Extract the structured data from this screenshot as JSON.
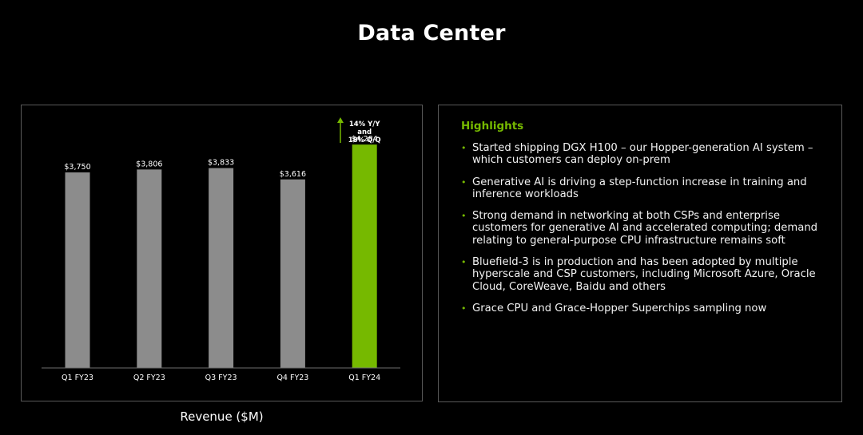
{
  "page": {
    "title": "Data Center"
  },
  "colors": {
    "background": "#000000",
    "bar_default": "#8c8c8c",
    "bar_highlight": "#76b900",
    "accent": "#76b900",
    "panel_border": "#5a5a5a"
  },
  "chart_data": {
    "type": "bar",
    "title": "",
    "xlabel": "Revenue ($M)",
    "ylabel": "",
    "ylim": [
      0,
      4500
    ],
    "grid": false,
    "categories": [
      "Q1 FY23",
      "Q2 FY23",
      "Q3 FY23",
      "Q4 FY23",
      "Q1 FY24"
    ],
    "values": [
      3750,
      3806,
      3833,
      3616,
      4284
    ],
    "data_labels": [
      "$3,750",
      "$3,806",
      "$3,833",
      "$3,616",
      "$4,284"
    ],
    "highlight_index": 4,
    "annotation": {
      "icon": "arrow-up-icon",
      "lines": [
        "14% Y/Y",
        "and",
        "18% Q/Q"
      ]
    }
  },
  "highlights": {
    "title": "Highlights",
    "items": [
      {
        "lines": [
          "Started shipping DGX H100 – our Hopper-generation AI system –",
          "which customers can deploy on-prem"
        ]
      },
      {
        "lines": [
          "Generative AI is driving a step-function increase in training and",
          "inference workloads"
        ]
      },
      {
        "lines": [
          "Strong demand in networking at both CSPs and enterprise",
          "customers for generative AI and accelerated computing; demand",
          "relating to general-purpose CPU infrastructure remains soft"
        ]
      },
      {
        "lines": [
          "Bluefield-3 is in production and has been adopted by multiple",
          "hyperscale and CSP customers, including Microsoft Azure, Oracle",
          "Cloud, CoreWeave, Baidu and others"
        ]
      },
      {
        "lines": [
          "Grace CPU and Grace-Hopper Superchips sampling now"
        ]
      }
    ]
  }
}
